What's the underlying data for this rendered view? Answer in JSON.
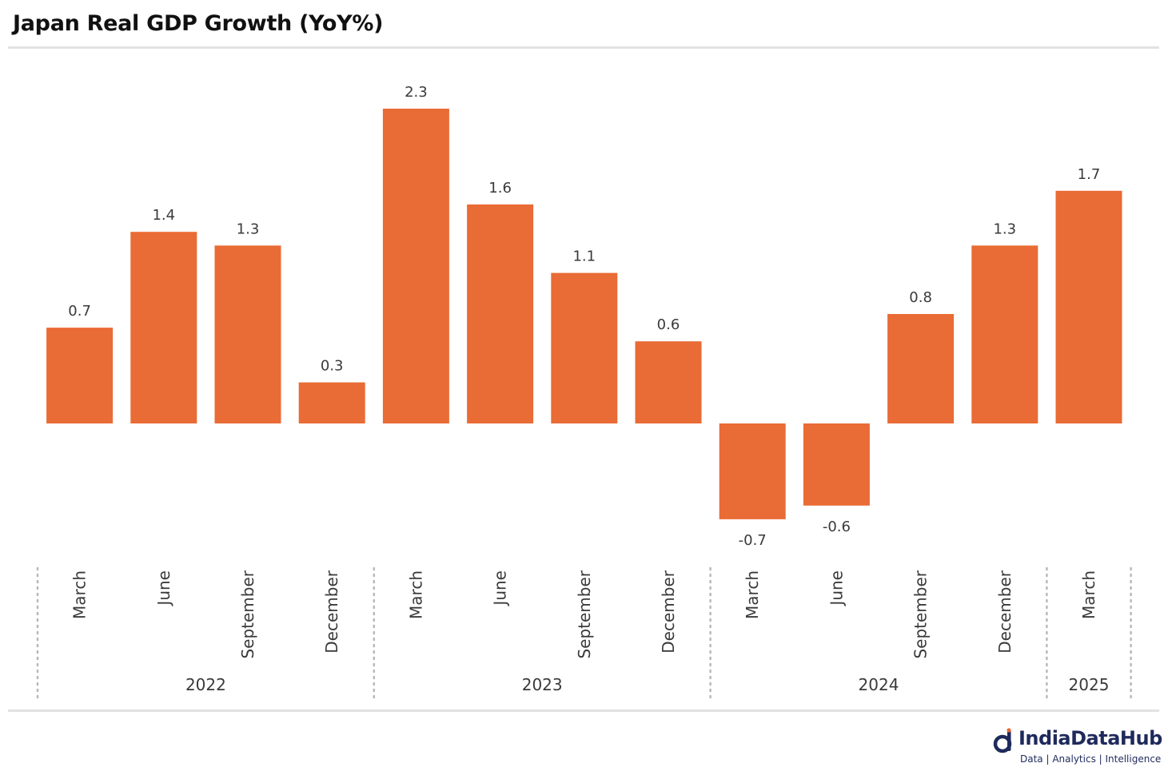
{
  "chart_data": {
    "type": "bar",
    "title": "Japan Real GDP Growth (YoY%)",
    "xlabel": "",
    "ylabel": "",
    "categories": [
      "March",
      "June",
      "September",
      "December",
      "March",
      "June",
      "September",
      "December",
      "March",
      "June",
      "September",
      "December",
      "March"
    ],
    "groups": [
      {
        "label": "2022",
        "count": 4
      },
      {
        "label": "2023",
        "count": 4
      },
      {
        "label": "2024",
        "count": 4
      },
      {
        "label": "2025",
        "count": 1
      }
    ],
    "values": [
      0.7,
      1.4,
      1.3,
      0.3,
      2.3,
      1.6,
      1.1,
      0.6,
      -0.7,
      -0.6,
      0.8,
      1.3,
      1.7
    ],
    "data_labels": [
      "0.7",
      "1.4",
      "1.3",
      "0.3",
      "2.3",
      "1.6",
      "1.1",
      "0.6",
      "-0.7",
      "-0.6",
      "0.8",
      "1.3",
      "1.7"
    ],
    "ylim": [
      -0.7,
      2.3
    ],
    "grid": false,
    "legend": "none",
    "colors": {
      "bar": "#e96b35",
      "text": "#3a3a3a",
      "separator": "#b8b8b8"
    }
  },
  "brand": {
    "name": "IndiaDataHub",
    "tagline": "Data | Analytics | Intelligence",
    "icon": "india-data-hub-logo-icon",
    "color": "#1f2a5c"
  }
}
